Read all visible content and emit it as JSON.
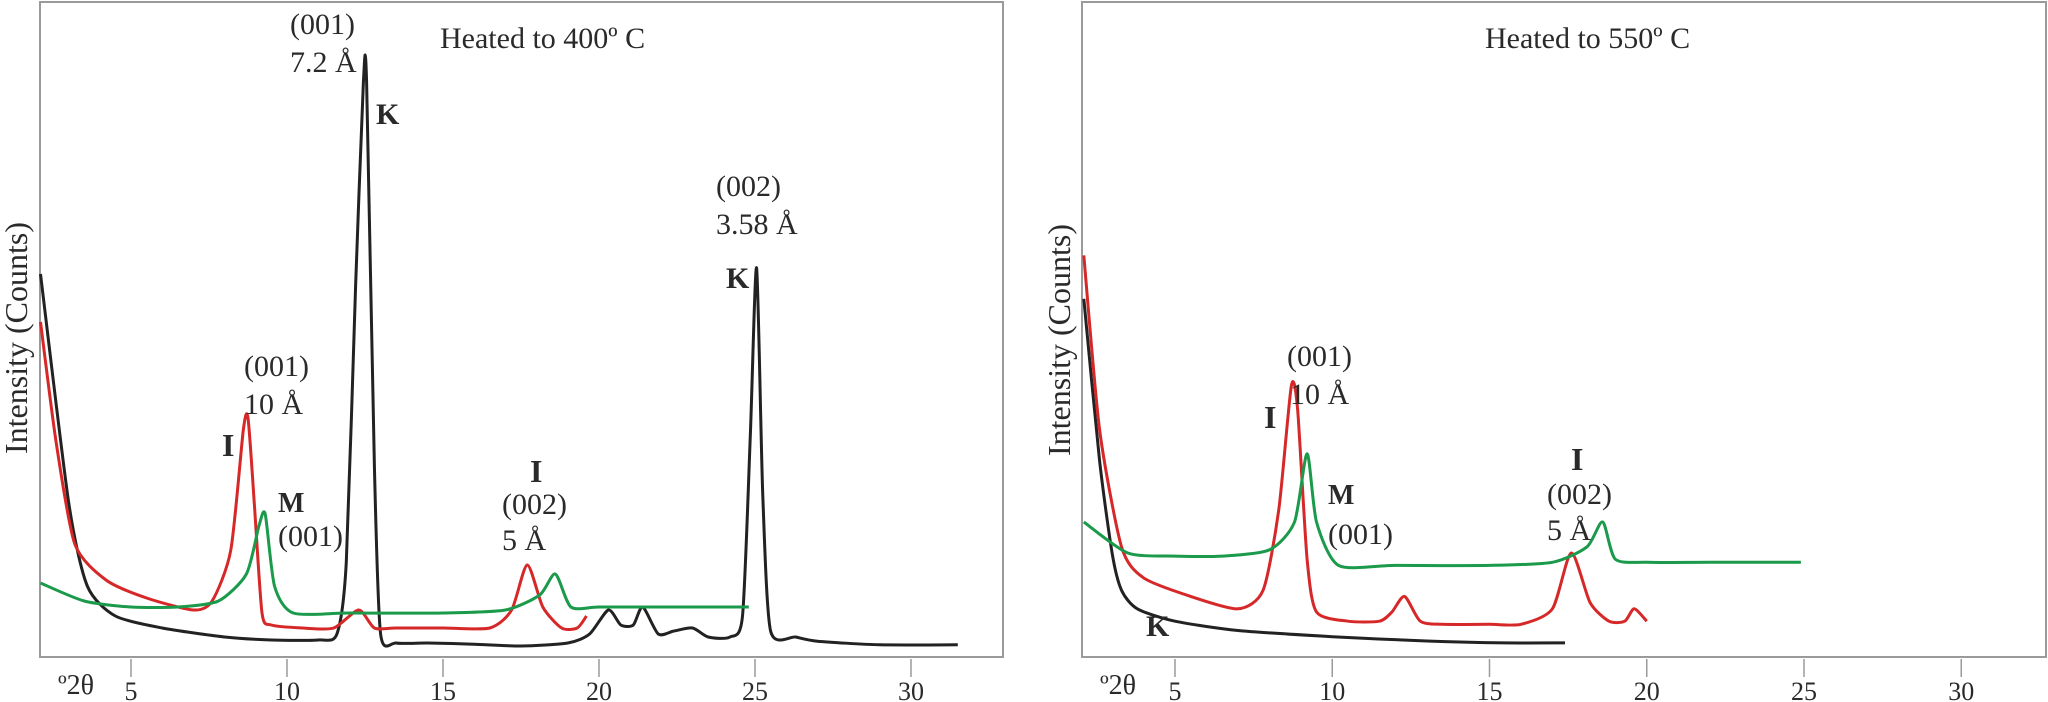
{
  "chart_data": [
    {
      "type": "line",
      "title": "Heated to 400º C",
      "xlabel": "º2θ",
      "ylabel": "Intensity (Counts)",
      "xlim": [
        2,
        32
      ],
      "ylim": [
        0,
        100
      ],
      "x_ticks": [
        "5",
        "10",
        "15",
        "20",
        "25",
        "30"
      ],
      "x_tick_values": [
        5,
        10,
        15,
        20,
        25,
        30
      ],
      "grid": false,
      "series": [
        {
          "name": "K",
          "color": "#222222",
          "x": [
            2.1,
            3.0,
            3.6,
            4.5,
            6,
            8,
            9.5,
            11,
            11.6,
            11.9,
            12.2,
            12.45,
            12.55,
            12.8,
            13.0,
            13.5,
            14.5,
            16,
            17.5,
            19,
            19.7,
            20.3,
            20.7,
            21.1,
            21.4,
            21.9,
            22.4,
            23.0,
            23.5,
            24.2,
            24.6,
            24.85,
            25.05,
            25.25,
            25.5,
            26.3,
            27,
            29,
            31.5
          ],
          "y": [
            62,
            24,
            10,
            5,
            3,
            1.5,
            1,
            1,
            2,
            14,
            60,
            94,
            94,
            30,
            2,
            0.5,
            0.5,
            0.3,
            0,
            0.5,
            2,
            6,
            3.5,
            3.5,
            6.5,
            2,
            2.5,
            3,
            1.5,
            1.5,
            5,
            35,
            63,
            25,
            2.5,
            1.5,
            0.8,
            0.2,
            0.2
          ]
        },
        {
          "name": "I (red)",
          "color": "#d62828",
          "x": [
            2.1,
            2.6,
            3.2,
            4.2,
            5.5,
            7.0,
            7.6,
            8.2,
            8.6,
            8.75,
            8.95,
            9.2,
            9.5,
            10.5,
            11.5,
            12.3,
            12.8,
            13.5,
            15,
            16.5,
            17.2,
            17.7,
            18.2,
            18.8,
            19.3,
            19.6
          ],
          "y": [
            54,
            34,
            17,
            11,
            8,
            6,
            7.5,
            16,
            36,
            38,
            24,
            5.5,
            3.5,
            3,
            3,
            6,
            3,
            3,
            3,
            3,
            6,
            13.5,
            6.5,
            3,
            3,
            5
          ]
        },
        {
          "name": "M (green)",
          "color": "#1a9a4a",
          "x": [
            2.1,
            3.5,
            5,
            6.5,
            7.8,
            8.7,
            9.1,
            9.3,
            9.6,
            10.2,
            12,
            15,
            17,
            18.1,
            18.6,
            19.1,
            20,
            22,
            24.8
          ],
          "y": [
            10.5,
            7.5,
            6.5,
            6.5,
            7.5,
            12,
            20,
            22,
            10,
            5.5,
            5.5,
            5.5,
            6,
            8.5,
            12,
            6.5,
            6.5,
            6.5,
            6.5
          ]
        }
      ],
      "annotations": [
        {
          "text": "(001)",
          "target": "K"
        },
        {
          "text": "7.2 Å",
          "target": "K"
        },
        {
          "text": "K",
          "bold": true
        },
        {
          "text": "(002)",
          "target": "K"
        },
        {
          "text": "3.58 Å",
          "target": "K"
        },
        {
          "text": "K",
          "bold": true
        },
        {
          "text": "(001)",
          "target": "I"
        },
        {
          "text": "10 Å",
          "target": "I"
        },
        {
          "text": "I",
          "bold": true
        },
        {
          "text": "M",
          "bold": true
        },
        {
          "text": "(001)",
          "target": "M"
        },
        {
          "text": "I",
          "bold": true
        },
        {
          "text": "(002)",
          "target": "I"
        },
        {
          "text": "5 Å",
          "target": "I"
        }
      ]
    },
    {
      "type": "line",
      "title": "Heated to 550º C",
      "xlabel": "º2θ",
      "ylabel": "Intensity (Counts)",
      "xlim": [
        2,
        32
      ],
      "ylim": [
        0,
        100
      ],
      "x_ticks": [
        "5",
        "10",
        "15",
        "20",
        "25",
        "30"
      ],
      "x_tick_values": [
        5,
        10,
        15,
        20,
        25,
        30
      ],
      "grid": false,
      "series": [
        {
          "name": "K",
          "color": "#222222",
          "x": [
            2.1,
            2.6,
            3.0,
            3.3,
            3.8,
            5,
            7,
            10,
            13,
            15.5,
            17.4
          ],
          "y": [
            56,
            30,
            15,
            9,
            6,
            4,
            2.5,
            1.5,
            0.8,
            0.5,
            0.5
          ]
        },
        {
          "name": "I (red)",
          "color": "#d62828",
          "x": [
            2.1,
            2.6,
            3.3,
            4.0,
            5.5,
            7.0,
            7.8,
            8.3,
            8.7,
            8.9,
            9.2,
            9.5,
            10.5,
            11.5,
            11.9,
            12.3,
            12.8,
            13.5,
            15,
            16,
            17.0,
            17.6,
            18.2,
            18.8,
            19.3,
            19.6,
            20.0
          ],
          "y": [
            63,
            35,
            16,
            11,
            8,
            6,
            9,
            22,
            42,
            38,
            14,
            5.5,
            4,
            4,
            5.5,
            8,
            4,
            3.5,
            3.5,
            3.5,
            6,
            15,
            7,
            4,
            4,
            6,
            4
          ]
        },
        {
          "name": "M (green)",
          "color": "#1a9a4a",
          "x": [
            2.1,
            3.5,
            5,
            6.5,
            8,
            8.8,
            9.2,
            9.5,
            10.2,
            12,
            15,
            17,
            18.1,
            18.6,
            19.0,
            20,
            22,
            24.9
          ],
          "y": [
            20,
            15,
            14.5,
            14.5,
            15.5,
            20,
            31,
            20,
            13,
            13,
            13,
            13.5,
            16,
            20,
            14,
            13.5,
            13.5,
            13.5
          ]
        }
      ],
      "annotations": [
        {
          "text": "(001)",
          "target": "I"
        },
        {
          "text": "10 Å",
          "target": "I"
        },
        {
          "text": "I",
          "bold": true
        },
        {
          "text": "M",
          "bold": true
        },
        {
          "text": "(001)",
          "target": "M"
        },
        {
          "text": "I",
          "bold": true
        },
        {
          "text": "(002)",
          "target": "I"
        },
        {
          "text": "5 Å",
          "target": "I"
        },
        {
          "text": "K",
          "bold": true
        }
      ]
    }
  ],
  "labels": {
    "left": {
      "title": "Heated to 400º C",
      "ylabel": "Intensity (Counts)",
      "xunit": "º2θ",
      "k001_a": "(001)",
      "k001_b": "7.2 Å",
      "k001_c": "K",
      "k002_a": "(002)",
      "k002_b": "3.58 Å",
      "k002_c": "K",
      "i001_a": "(001)",
      "i001_b": "10 Å",
      "i001_c": "I",
      "m001_a": "M",
      "m001_b": "(001)",
      "i002_a": "I",
      "i002_b": "(002)",
      "i002_c": "5 Å"
    },
    "right": {
      "title": "Heated to 550º C",
      "ylabel": "Intensity (Counts)",
      "xunit": "º2θ",
      "i001_a": "(001)",
      "i001_b": "10 Å",
      "i001_c": "I",
      "m001_a": "M",
      "m001_b": "(001)",
      "i002_a": "I",
      "i002_b": "(002)",
      "i002_c": "5 Å",
      "k_c": "K"
    }
  }
}
